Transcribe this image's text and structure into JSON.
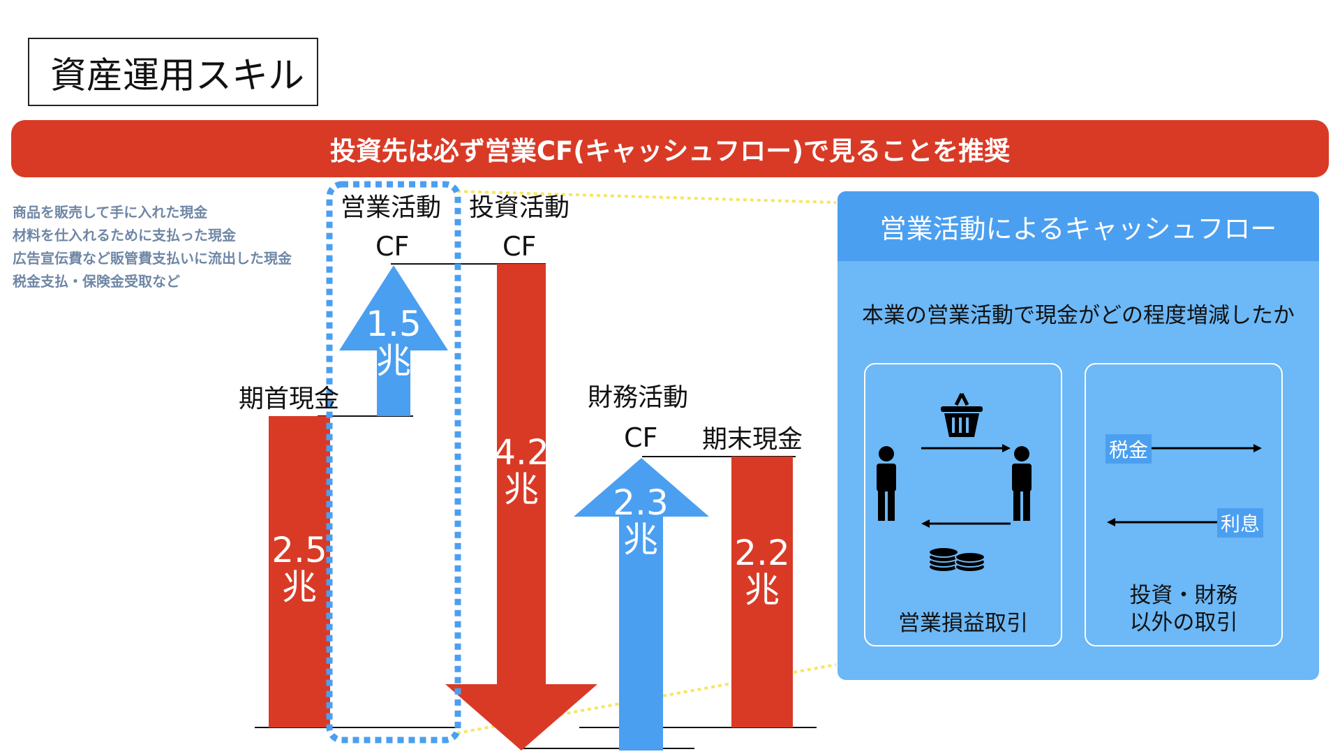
{
  "page": {
    "title": "資産運用スキル"
  },
  "banner": {
    "text": "投資先は必ず営業CF(キャッシュフロー)で見ることを推奨"
  },
  "notes": [
    "商品を販売して手に入れた現金",
    "材料を仕入れるために支払った現金",
    "広告宣伝費など販管費支払いに流出した現金",
    "税金支払・保険金受取など"
  ],
  "waterfall": {
    "cf_label": "CF",
    "unit": "兆",
    "items": [
      {
        "label": "期首現金",
        "value": "2.5",
        "color": "#d93a26",
        "shape": "bar"
      },
      {
        "label": "営業活動",
        "value": "1.5",
        "color": "#4b9ff0",
        "shape": "up-arrow"
      },
      {
        "label": "投資活動",
        "value": "4.2",
        "color": "#d93a26",
        "shape": "down-arrow"
      },
      {
        "label": "財務活動",
        "value": "2.3",
        "color": "#4b9ff0",
        "shape": "up-arrow"
      },
      {
        "label": "期末現金",
        "value": "2.2",
        "color": "#d93a26",
        "shape": "bar"
      }
    ]
  },
  "panel": {
    "title": "営業活動によるキャッシュフロー",
    "description": "本業の営業活動で現金がどの程度増減したか",
    "left_box": {
      "caption": "営業損益取引",
      "icons": [
        "person-icon",
        "basket-icon",
        "person-icon",
        "coins-icon"
      ]
    },
    "right_box": {
      "caption_line1": "投資・財務",
      "caption_line2": "以外の取引",
      "tag_top": "税金",
      "tag_bottom": "利息"
    }
  },
  "colors": {
    "red": "#d93a26",
    "blue": "#4b9ff0",
    "panel": "#6db8f6",
    "highlight": "#f5e661",
    "note_text": "#6f87a6"
  }
}
